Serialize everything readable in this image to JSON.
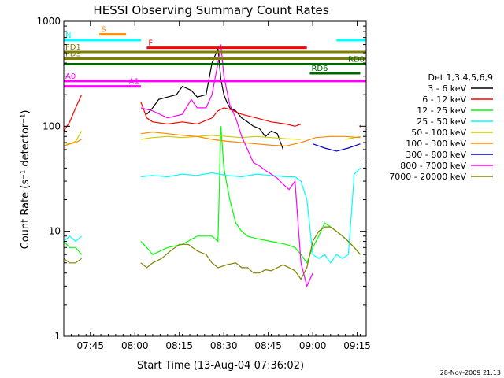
{
  "chart_data": {
    "type": "line",
    "title": "HESSI Observing Summary Count Rates",
    "xlabel": "Start Time (13-Aug-04 07:36:02)",
    "ylabel": "Count Rate (s⁻¹ detector⁻¹)",
    "y_scale": "log",
    "ylim": [
      1,
      1000
    ],
    "xlim_minutes": [
      0,
      102
    ],
    "x_tick_labels": [
      "07:45",
      "08:00",
      "08:15",
      "08:30",
      "08:45",
      "09:00",
      "09:15"
    ],
    "x_tick_minutes": [
      8.97,
      23.97,
      38.97,
      53.97,
      68.97,
      83.97,
      98.97
    ],
    "y_tick_labels": [
      "1",
      "10",
      "100",
      "1000"
    ],
    "y_ticks": [
      1,
      10,
      100,
      1000
    ],
    "legend_title": "Det 1,3,4,5,6,9",
    "legend_position": "right",
    "timestamp": "28-Nov-2009 21:13",
    "series": [
      {
        "name": "3 - 6 keV",
        "color": "#000000",
        "x": [
          16,
          17,
          18,
          19,
          20,
          21,
          22,
          23,
          24,
          25,
          26,
          28,
          30,
          32,
          35,
          38,
          40,
          43,
          45,
          48,
          50,
          52,
          53,
          54,
          55,
          56,
          58,
          60,
          62,
          64,
          66,
          68,
          70,
          72,
          74,
          75,
          76,
          80,
          84,
          88,
          92,
          96,
          100
        ],
        "y": [
          null,
          null,
          null,
          null,
          null,
          null,
          null,
          null,
          null,
          null,
          null,
          130,
          150,
          180,
          190,
          200,
          240,
          220,
          190,
          200,
          400,
          550,
          280,
          200,
          170,
          150,
          140,
          120,
          110,
          100,
          95,
          80,
          90,
          85,
          60,
          null,
          null,
          null,
          null,
          null,
          null,
          null,
          null
        ]
      },
      {
        "name": "6 - 12 keV",
        "color": "#ff0000",
        "x": [
          0,
          2,
          4,
          6,
          8,
          16,
          18,
          20,
          22,
          24,
          26,
          28,
          30,
          35,
          40,
          45,
          50,
          52,
          54,
          56,
          60,
          65,
          70,
          75,
          78,
          80,
          85,
          90,
          95,
          100
        ],
        "y": [
          90,
          110,
          150,
          200,
          null,
          null,
          null,
          null,
          null,
          null,
          170,
          120,
          110,
          105,
          110,
          105,
          120,
          140,
          150,
          145,
          130,
          120,
          110,
          105,
          100,
          105,
          null,
          null,
          null,
          100
        ]
      },
      {
        "name": "12 - 25 keV",
        "color": "#00ff00",
        "x": [
          0,
          2,
          4,
          6,
          8,
          16,
          18,
          20,
          22,
          24,
          26,
          28,
          30,
          35,
          40,
          45,
          50,
          52,
          53,
          54,
          56,
          58,
          60,
          62,
          65,
          70,
          75,
          78,
          80,
          82,
          84,
          86,
          88,
          90,
          92,
          94,
          96,
          98,
          100
        ],
        "y": [
          8,
          7,
          7,
          6,
          null,
          null,
          null,
          null,
          null,
          null,
          8,
          7,
          6,
          7,
          7.5,
          9,
          9,
          8,
          100,
          40,
          20,
          12,
          10,
          9,
          8.5,
          8,
          7.5,
          7,
          6,
          5,
          7,
          9,
          12,
          11,
          10,
          9,
          8,
          7,
          6
        ]
      },
      {
        "name": "25 - 50 keV",
        "color": "#00ffff",
        "x": [
          0,
          2,
          4,
          6,
          8,
          26,
          30,
          35,
          40,
          45,
          50,
          55,
          60,
          65,
          70,
          75,
          78,
          80,
          82,
          84,
          86,
          88,
          90,
          92,
          94,
          96,
          98,
          100
        ],
        "y": [
          8,
          9,
          8,
          9,
          null,
          33,
          34,
          33,
          35,
          34,
          36,
          34,
          33,
          35,
          34,
          33,
          33,
          30,
          20,
          6,
          5.5,
          6,
          5,
          6,
          5.5,
          6,
          35,
          40
        ]
      },
      {
        "name": "50 - 100 keV",
        "color": "#cccc00",
        "x": [
          0,
          2,
          4,
          6,
          8,
          26,
          30,
          35,
          40,
          45,
          50,
          55,
          60,
          65,
          70,
          75,
          80,
          85,
          90,
          95,
          100
        ],
        "y": [
          70,
          68,
          72,
          90,
          null,
          75,
          78,
          80,
          78,
          80,
          82,
          80,
          78,
          80,
          78,
          76,
          75,
          null,
          null,
          75,
          80
        ]
      },
      {
        "name": "100 - 300 keV",
        "color": "#ff8800",
        "x": [
          0,
          2,
          4,
          6,
          8,
          26,
          30,
          35,
          40,
          45,
          50,
          55,
          60,
          65,
          70,
          75,
          80,
          85,
          90,
          95,
          100
        ],
        "y": [
          65,
          68,
          70,
          75,
          null,
          85,
          88,
          85,
          82,
          80,
          75,
          72,
          70,
          68,
          66,
          65,
          70,
          78,
          80,
          80,
          78
        ]
      },
      {
        "name": "300 - 800 keV",
        "color": "#0000cc",
        "x": [
          80,
          82,
          84,
          86,
          88,
          90,
          92,
          94,
          96,
          98,
          100
        ],
        "y": [
          null,
          null,
          68,
          65,
          62,
          60,
          58,
          60,
          62,
          65,
          68
        ]
      },
      {
        "name": "800 - 7000 keV",
        "color": "#ff00ff",
        "x": [
          26,
          30,
          35,
          40,
          43,
          45,
          48,
          50,
          52,
          53,
          54,
          56,
          58,
          60,
          62,
          64,
          66,
          68,
          70,
          72,
          74,
          76,
          78,
          80,
          82,
          84
        ],
        "y": [
          150,
          140,
          120,
          130,
          180,
          150,
          150,
          200,
          400,
          600,
          300,
          160,
          120,
          80,
          60,
          45,
          42,
          38,
          35,
          32,
          28,
          25,
          30,
          5,
          3,
          4
        ]
      },
      {
        "name": "7000 - 20000 keV",
        "color": "#808000",
        "x": [
          0,
          2,
          4,
          6,
          8,
          26,
          28,
          30,
          33,
          36,
          39,
          42,
          45,
          48,
          50,
          52,
          55,
          58,
          60,
          62,
          64,
          66,
          68,
          70,
          72,
          74,
          76,
          78,
          80,
          82,
          84,
          86,
          88,
          90,
          92,
          94,
          96,
          98,
          100
        ],
        "y": [
          5.5,
          5,
          5,
          5.5,
          null,
          5,
          4.5,
          5,
          5.5,
          6.5,
          7.5,
          7.5,
          6.5,
          6,
          5,
          4.5,
          4.8,
          5,
          4.5,
          4.5,
          4,
          4,
          4.3,
          4.2,
          4.5,
          4.8,
          4.5,
          4.2,
          3.5,
          4.5,
          8,
          10,
          11,
          11,
          10,
          9,
          8,
          7,
          6
        ]
      }
    ],
    "flags": [
      {
        "label": "S",
        "color": "#ff8800",
        "y_value": 750,
        "x_start": 12,
        "x_end": 21,
        "label_side": "left"
      },
      {
        "label": "N",
        "color": "#00ffff",
        "y_value": 660,
        "x_start": 0,
        "x_end": 26,
        "label_side": "left"
      },
      {
        "label": "N",
        "color": "#00ffff",
        "y_value": 660,
        "x_start": 92,
        "x_end": 102,
        "label_side": "none"
      },
      {
        "label": "F",
        "color": "#ff0000",
        "y_value": 560,
        "x_start": 28,
        "x_end": 82,
        "label_side": "left"
      },
      {
        "label": "FD1",
        "color": "#808000",
        "y_value": 510,
        "x_start": 0,
        "x_end": 102,
        "label_side": "left"
      },
      {
        "label": "FD3",
        "color": "#808000",
        "y_value": 440,
        "x_start": 0,
        "x_end": 102,
        "label_side": "left"
      },
      {
        "label": "RD0",
        "color": "#006600",
        "y_value": 390,
        "x_start": 0,
        "x_end": 102,
        "label_side": "right"
      },
      {
        "label": "RD6",
        "color": "#006600",
        "y_value": 320,
        "x_start": 83,
        "x_end": 100,
        "label_side": "left"
      },
      {
        "label": "A0",
        "color": "#ff00ff",
        "y_value": 270,
        "x_start": 0,
        "x_end": 102,
        "label_side": "left"
      },
      {
        "label": "A1",
        "color": "#ff00ff",
        "y_value": 240,
        "x_start": 0,
        "x_end": 26,
        "label_side": "right"
      }
    ]
  }
}
